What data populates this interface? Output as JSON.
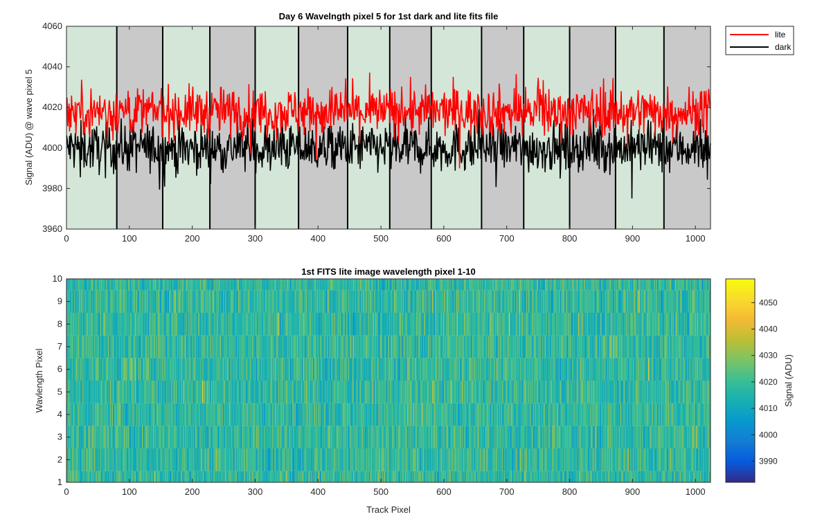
{
  "chart_data": [
    {
      "type": "line",
      "title": "Day 6 Wavelngth pixel 5 for 1st dark and lite fits file",
      "xlabel": "",
      "ylabel": "Signal (ADU) @ wave pixel 5",
      "xlim": [
        0,
        1024
      ],
      "ylim": [
        3960,
        4060
      ],
      "xticks": [
        "0",
        "100",
        "200",
        "300",
        "400",
        "500",
        "600",
        "700",
        "800",
        "900",
        "1000"
      ],
      "yticks": [
        "3960",
        "3980",
        "4000",
        "4020",
        "4040",
        "4060"
      ],
      "legend_position": "outside-top-right",
      "band_boundaries": [
        0,
        80,
        153,
        228,
        300,
        369,
        447,
        514,
        580,
        660,
        727,
        800,
        873,
        950,
        1024
      ],
      "band_colors": [
        "#d4e6d7",
        "#c9c9c9"
      ],
      "series": [
        {
          "name": "lite",
          "color": "#ff0000",
          "mean": 4018,
          "spread": 6,
          "min": 3988,
          "max": 4049
        },
        {
          "name": "dark",
          "color": "#000000",
          "mean": 4000,
          "spread": 6,
          "min": 3973,
          "max": 4025
        }
      ]
    },
    {
      "type": "heatmap",
      "title": "1st FITS lite image wavelength pixel 1-10",
      "xlabel": "Track Pixel",
      "ylabel": "Wavlength Pixel",
      "xlim": [
        0,
        1024
      ],
      "ylim": [
        1,
        10
      ],
      "xticks": [
        "0",
        "100",
        "200",
        "300",
        "400",
        "500",
        "600",
        "700",
        "800",
        "900",
        "1000"
      ],
      "yticks": [
        "1",
        "2",
        "3",
        "4",
        "5",
        "6",
        "7",
        "8",
        "9",
        "10"
      ],
      "rows": 10,
      "columns": 1024,
      "colorbar": {
        "label": "Signal (ADU)",
        "range": [
          3982,
          4059
        ],
        "ticks": [
          "3990",
          "4000",
          "4010",
          "4020",
          "4030",
          "4040",
          "4050"
        ],
        "colormap": "parula"
      }
    }
  ]
}
